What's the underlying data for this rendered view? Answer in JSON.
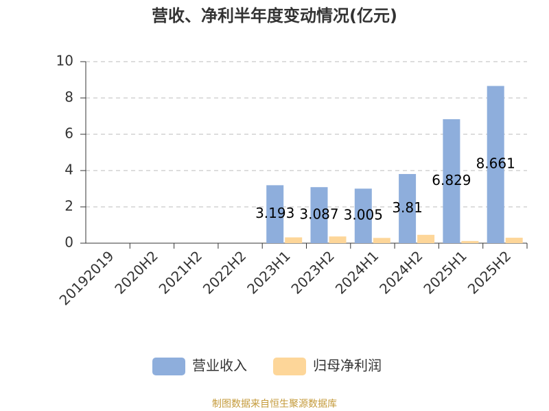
{
  "chart_data": {
    "type": "bar",
    "title": "营收、净利半年度变动情况(亿元)",
    "categories": [
      "20192019",
      "2020H2",
      "2021H2",
      "2022H2",
      "2023H1",
      "2023H2",
      "2024H1",
      "2024H2",
      "2025H1",
      "2025H2"
    ],
    "series": [
      {
        "name": "营业收入",
        "color": "#8eaedc",
        "data_labels": true,
        "values": [
          null,
          null,
          null,
          null,
          3.193,
          3.087,
          3.005,
          3.81,
          6.829,
          8.661
        ]
      },
      {
        "name": "归母净利润",
        "color": "#fdd699",
        "data_labels": false,
        "values": [
          null,
          null,
          null,
          null,
          0.32,
          0.37,
          0.29,
          0.46,
          0.12,
          0.3
        ]
      }
    ],
    "ylim": [
      0,
      10
    ],
    "yticks": [
      0,
      2,
      4,
      6,
      8,
      10
    ],
    "grid": true,
    "legend": "bottom",
    "source": "制图数据来自恒生聚源数据库"
  }
}
